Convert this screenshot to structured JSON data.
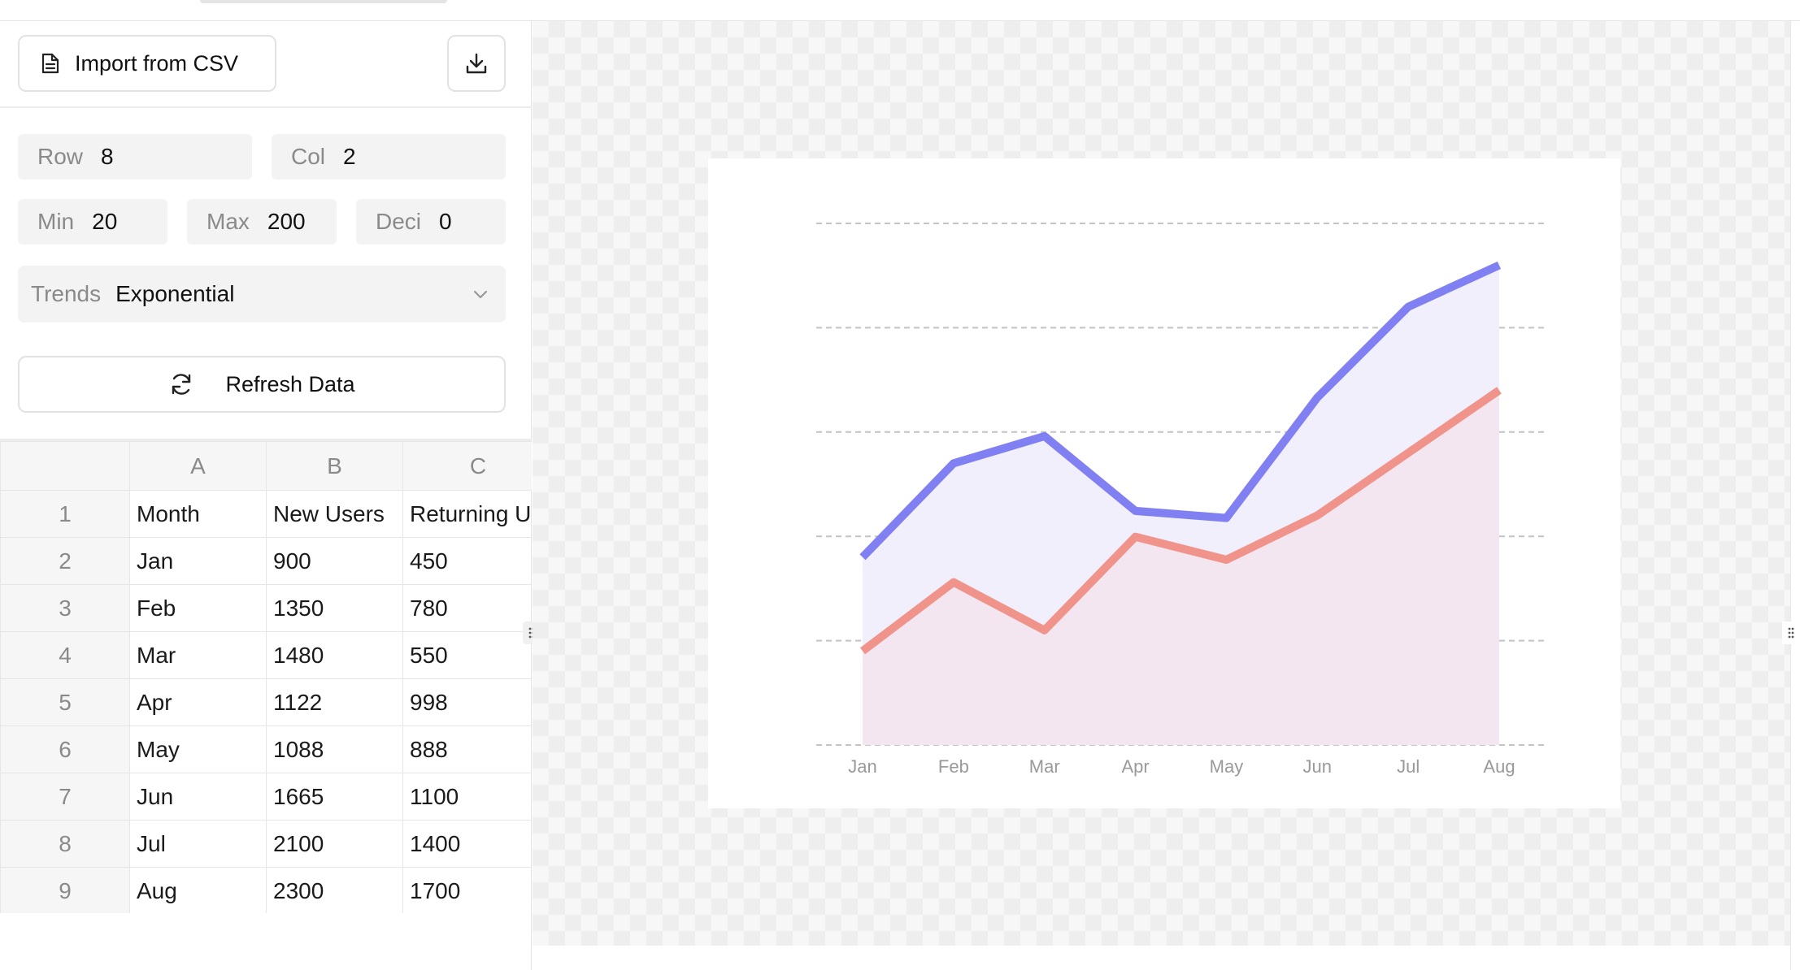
{
  "toolbar": {
    "import_label": "Import from CSV",
    "import_icon": "file-text-icon",
    "download_icon": "download-icon"
  },
  "params": {
    "row": {
      "label": "Row",
      "value": "8"
    },
    "col": {
      "label": "Col",
      "value": "2"
    },
    "min": {
      "label": "Min",
      "value": "20"
    },
    "max": {
      "label": "Max",
      "value": "200"
    },
    "deci": {
      "label": "Deci",
      "value": "0"
    }
  },
  "trend": {
    "label": "Trends",
    "value": "Exponential"
  },
  "refresh": {
    "label": "Refresh Data",
    "icon": "refresh-icon"
  },
  "sheet": {
    "columns": [
      "A",
      "B",
      "C"
    ],
    "row_numbers": [
      "1",
      "2",
      "3",
      "4",
      "5",
      "6",
      "7",
      "8",
      "9"
    ],
    "rows": [
      [
        "Month",
        "New Users",
        "Returning U"
      ],
      [
        "Jan",
        "900",
        "450"
      ],
      [
        "Feb",
        "1350",
        "780"
      ],
      [
        "Mar",
        "1480",
        "550"
      ],
      [
        "Apr",
        "1122",
        "998"
      ],
      [
        "May",
        "1088",
        "888"
      ],
      [
        "Jun",
        "1665",
        "1100"
      ],
      [
        "Jul",
        "2100",
        "1400"
      ],
      [
        "Aug",
        "2300",
        "1700"
      ]
    ]
  },
  "chart_data": {
    "type": "area",
    "categories": [
      "Jan",
      "Feb",
      "Mar",
      "Apr",
      "May",
      "Jun",
      "Jul",
      "Aug"
    ],
    "series": [
      {
        "name": "New Users",
        "values": [
          900,
          1350,
          1480,
          1122,
          1088,
          1665,
          2100,
          2300
        ],
        "color": "#8080f2",
        "fill": "#f1effb"
      },
      {
        "name": "Returning Users",
        "values": [
          450,
          780,
          550,
          998,
          888,
          1100,
          1400,
          1700
        ],
        "color": "#f0938b",
        "fill": "#f3e6f0"
      }
    ],
    "ylim": [
      0,
      2500
    ],
    "grid_values": [
      0,
      500,
      1000,
      1500,
      2000,
      2500
    ],
    "grid": true,
    "grid_color": "#c4c4c4",
    "legend": "none"
  },
  "colors": {
    "checker": "#eeeeee",
    "panel_border": "#e3e3e3"
  }
}
